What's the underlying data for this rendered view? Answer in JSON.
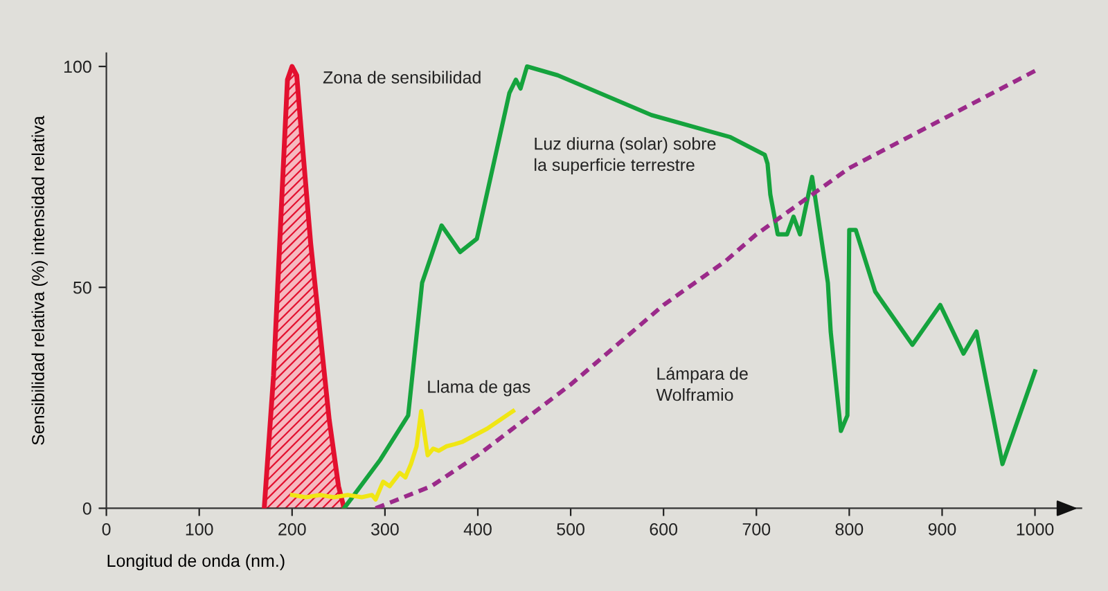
{
  "chart_data": {
    "type": "line",
    "xlabel": "Longitud de onda (nm.)",
    "ylabel": "Sensibilidad relativa (%) intensidad relativa",
    "xlim": [
      0,
      1050
    ],
    "ylim": [
      0,
      103
    ],
    "xticks": [
      0,
      100,
      200,
      300,
      400,
      500,
      600,
      700,
      800,
      900,
      1000
    ],
    "yticks": [
      0,
      50,
      100
    ],
    "grid": false,
    "legend": false,
    "series": [
      {
        "name": "Zona de sensibilidad",
        "type": "area",
        "color": "#e3102f",
        "x": [
          170,
          180,
          190,
          195,
          200,
          205,
          210,
          220,
          230,
          240,
          250,
          256
        ],
        "values": [
          0,
          30,
          75,
          97,
          100,
          98,
          85,
          60,
          40,
          20,
          5,
          0
        ]
      },
      {
        "name": "Luz diurna (solar) sobre\nla superficie terrestre",
        "color": "#15a33d",
        "x": [
          256,
          295,
          325,
          340,
          361,
          381,
          399,
          416,
          434,
          441,
          446,
          453,
          486,
          587,
          672,
          709,
          712,
          715,
          723,
          733,
          740,
          747,
          760,
          777,
          780,
          791,
          798,
          800,
          807,
          828,
          868,
          898,
          923,
          937,
          965,
          1000
        ],
        "values": [
          0,
          11,
          21,
          51,
          64,
          58,
          61,
          77,
          94,
          97,
          95,
          100,
          98,
          89,
          84,
          80,
          78,
          71,
          62,
          62,
          66,
          62,
          75,
          51,
          40,
          17.5,
          21,
          63,
          63,
          49,
          37,
          46,
          35,
          40,
          10,
          31
        ]
      },
      {
        "name": "Llama de gas",
        "color": "#f0e614",
        "x": [
          200,
          215,
          230,
          245,
          260,
          275,
          286,
          290,
          298,
          305,
          316,
          322,
          328,
          334,
          339,
          346,
          352,
          358,
          366,
          375,
          383,
          392,
          410,
          438
        ],
        "values": [
          3,
          2.5,
          3,
          2.5,
          3,
          2.5,
          3,
          2,
          6,
          5,
          8,
          7,
          10,
          14,
          22,
          12,
          13.5,
          13,
          14,
          14.5,
          15,
          16,
          18,
          22
        ]
      },
      {
        "name": "Lámpara de\nWolframio",
        "color": "#9b2a8a",
        "line_style": "dashed",
        "x": [
          290,
          350,
          400,
          500,
          600,
          667,
          700,
          800,
          900,
          1000
        ],
        "values": [
          0,
          5,
          12,
          28,
          46,
          56,
          62,
          77,
          88,
          99
        ]
      }
    ]
  }
}
